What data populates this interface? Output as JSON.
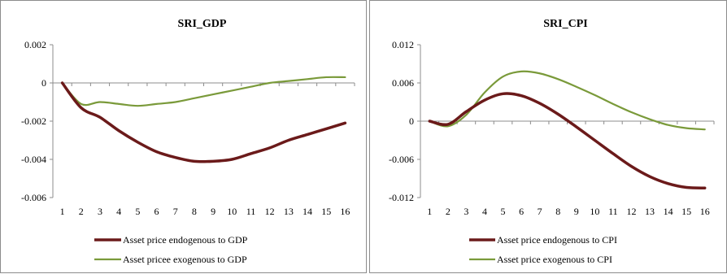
{
  "colors": {
    "endogenous": "#6b1a1a",
    "exogenous": "#7a9a3a",
    "axis": "#8c8c8c",
    "grid": "#d9d9d9"
  },
  "chart_data": [
    {
      "type": "line",
      "title": "SRI_GDP",
      "x": [
        1,
        2,
        3,
        4,
        5,
        6,
        7,
        8,
        9,
        10,
        11,
        12,
        13,
        14,
        15,
        16
      ],
      "ylim": [
        -0.006,
        0.002
      ],
      "yticks": [
        0.002,
        0,
        -0.002,
        -0.004,
        -0.006
      ],
      "ytick_labels": [
        "0.002",
        "0",
        "-0.002",
        "-0.004",
        "-0.006"
      ],
      "xtick_labels": [
        "1",
        "2",
        "3",
        "4",
        "5",
        "6",
        "7",
        "8",
        "9",
        "10",
        "11",
        "12",
        "13",
        "14",
        "15",
        "16"
      ],
      "grid": "horizontal",
      "legend": "bottom",
      "series": [
        {
          "name": "Asset price endogenous to GDP",
          "color": "#6b1a1a",
          "width": 3.5,
          "values": [
            0,
            -0.0013,
            -0.0018,
            -0.0025,
            -0.0031,
            -0.0036,
            -0.0039,
            -0.0041,
            -0.0041,
            -0.004,
            -0.0037,
            -0.0034,
            -0.003,
            -0.0027,
            -0.0024,
            -0.0021
          ]
        },
        {
          "name": "Asset pricee exogenous to GDP",
          "color": "#7a9a3a",
          "width": 2.2,
          "values": [
            0,
            -0.0011,
            -0.001,
            -0.0011,
            -0.0012,
            -0.0011,
            -0.001,
            -0.0008,
            -0.0006,
            -0.0004,
            -0.0002,
            0.0,
            0.0001,
            0.0002,
            0.0003,
            0.0003
          ]
        }
      ]
    },
    {
      "type": "line",
      "title": "SRI_CPI",
      "x": [
        1,
        2,
        3,
        4,
        5,
        6,
        7,
        8,
        9,
        10,
        11,
        12,
        13,
        14,
        15,
        16
      ],
      "ylim": [
        -0.012,
        0.012
      ],
      "yticks": [
        0.012,
        0.006,
        0,
        -0.006,
        -0.012
      ],
      "ytick_labels": [
        "0.012",
        "0.006",
        "0",
        "-0.006",
        "-0.012"
      ],
      "xtick_labels": [
        "1",
        "2",
        "3",
        "4",
        "5",
        "6",
        "7",
        "8",
        "9",
        "10",
        "11",
        "12",
        "13",
        "14",
        "15",
        "16"
      ],
      "grid": "horizontal",
      "legend": "bottom",
      "series": [
        {
          "name": "Asset price endogenous to CPI",
          "color": "#6b1a1a",
          "width": 3.5,
          "values": [
            0,
            -0.0005,
            0.0015,
            0.0033,
            0.0043,
            0.004,
            0.0028,
            0.0011,
            -0.0009,
            -0.003,
            -0.0051,
            -0.0071,
            -0.0087,
            -0.0098,
            -0.0104,
            -0.0105
          ]
        },
        {
          "name": "Asset price exogenous to CPI",
          "color": "#7a9a3a",
          "width": 2.2,
          "values": [
            0,
            -0.0008,
            0.001,
            0.0045,
            0.007,
            0.0078,
            0.0075,
            0.0066,
            0.0054,
            0.0041,
            0.0027,
            0.0014,
            0.0003,
            -0.0006,
            -0.0011,
            -0.0013
          ]
        }
      ]
    }
  ]
}
